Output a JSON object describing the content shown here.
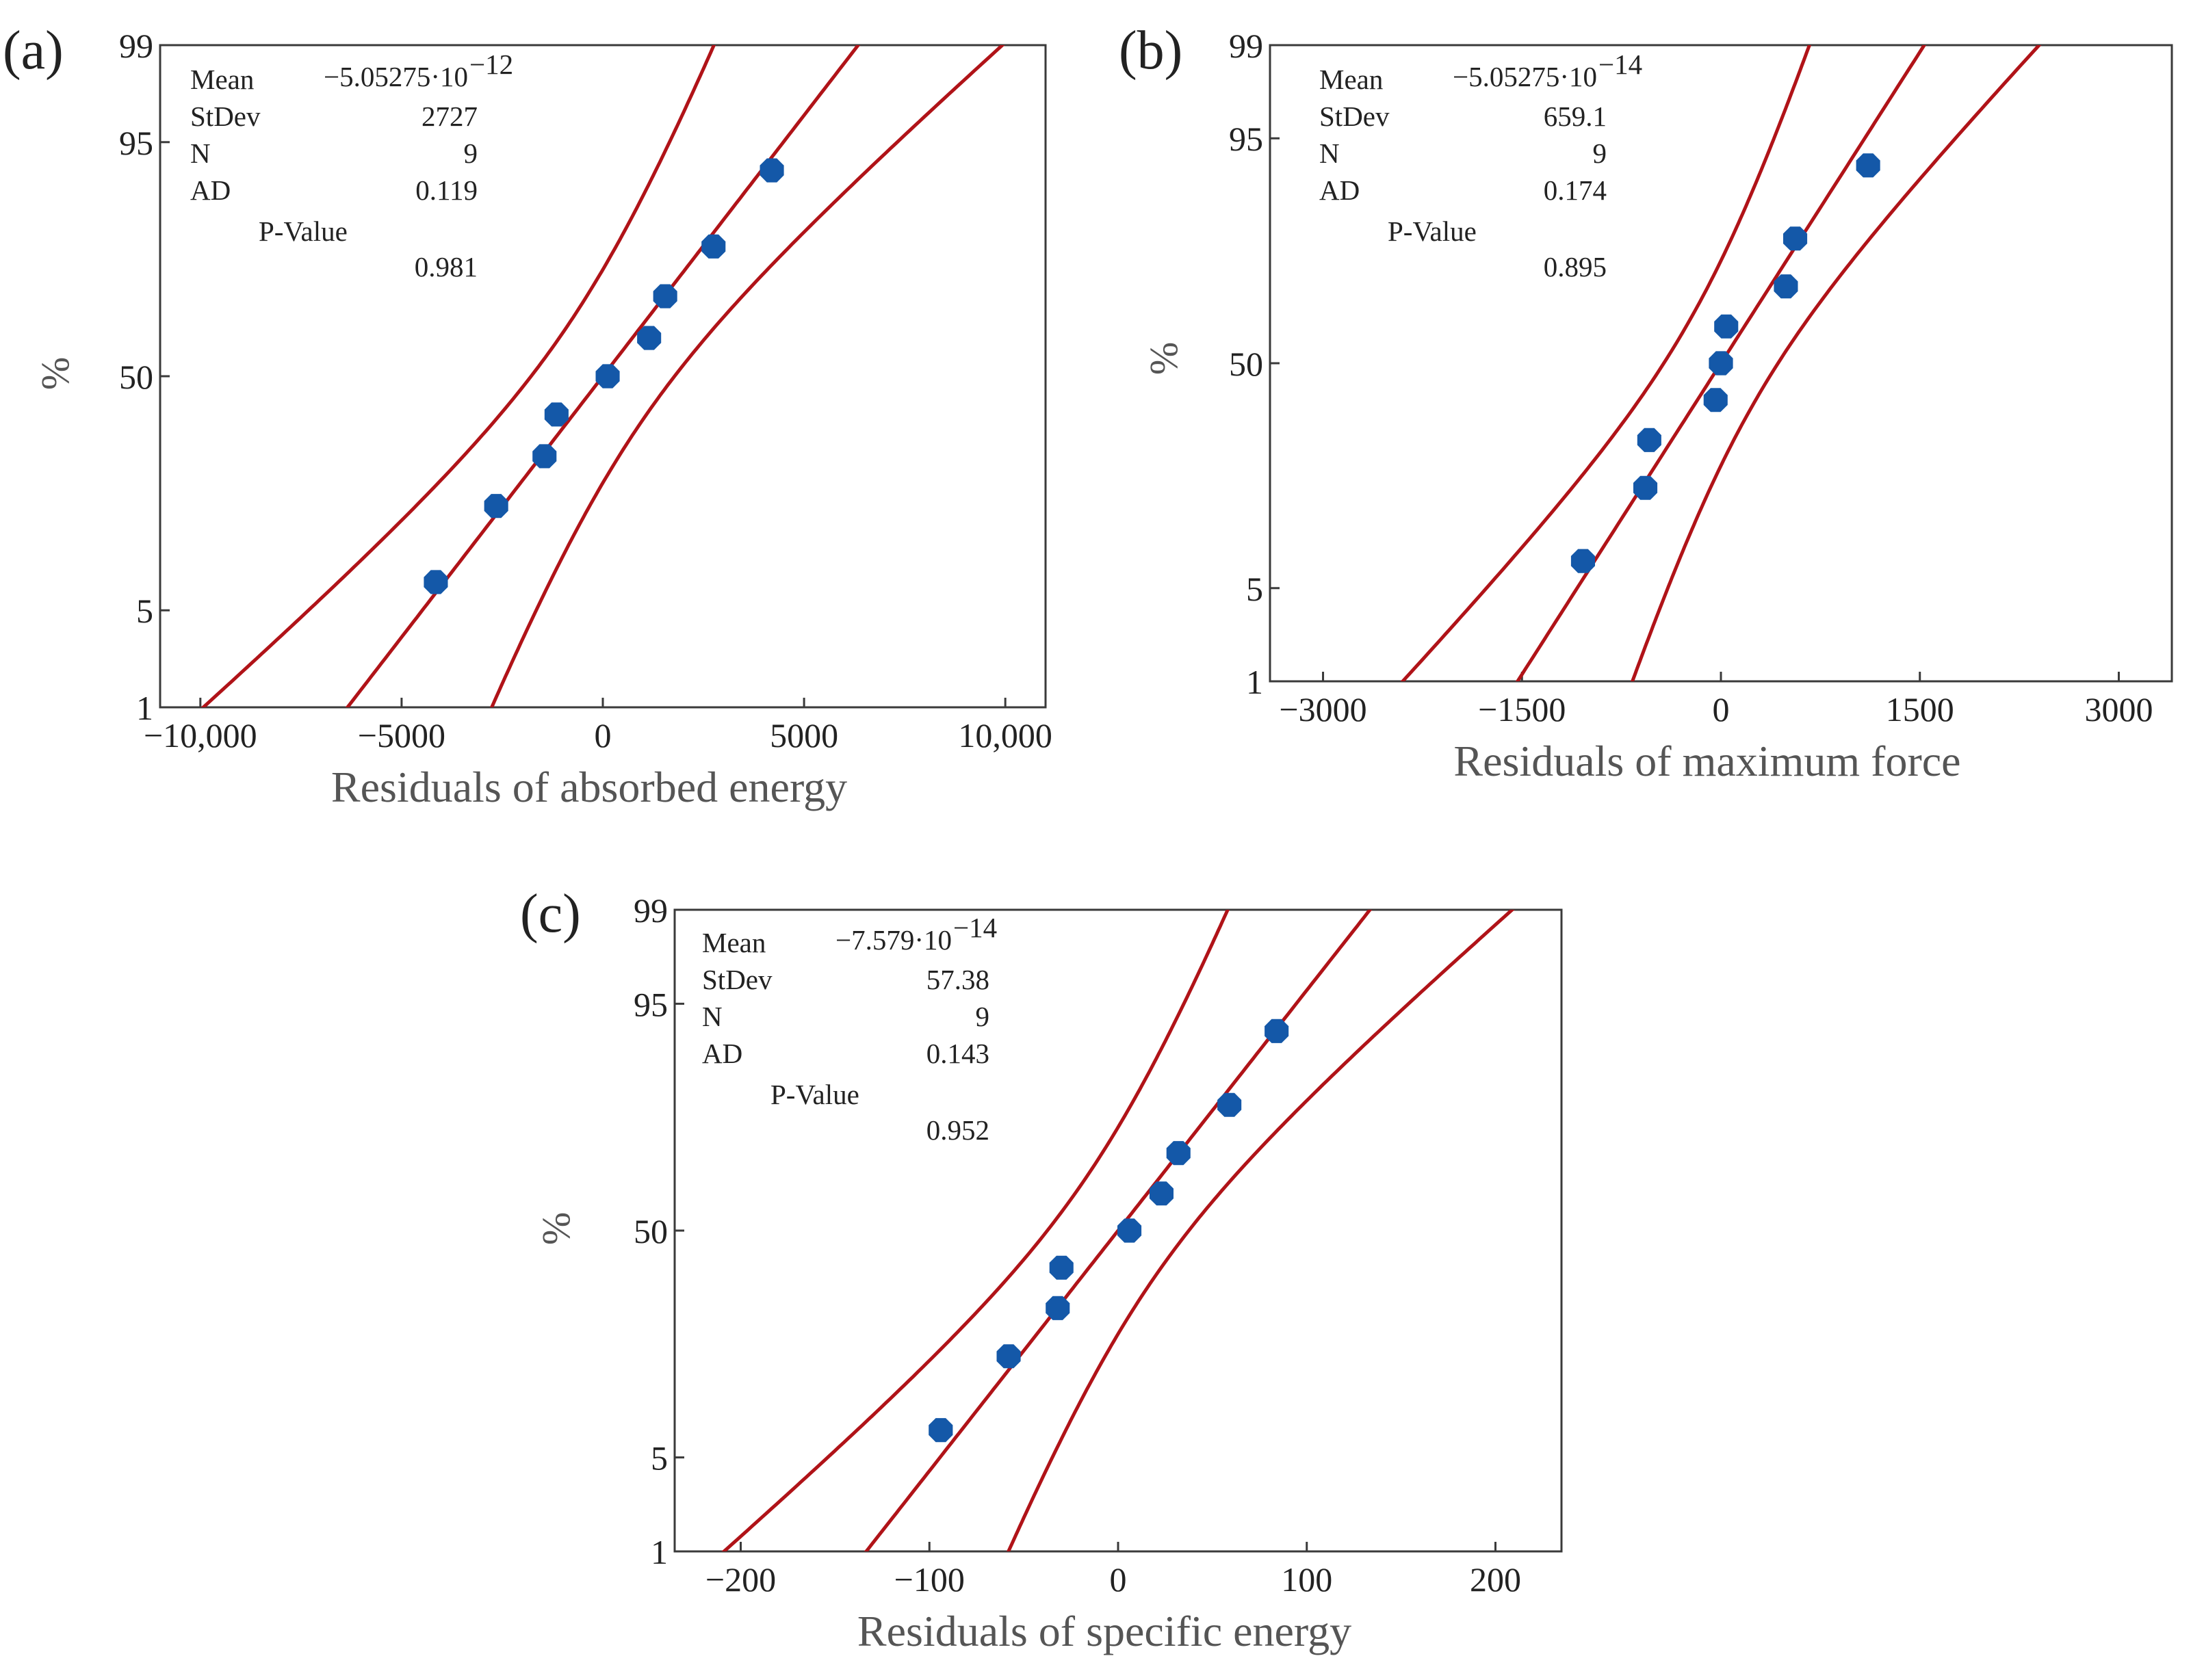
{
  "colors": {
    "line": "#b01318",
    "point": "#1458a8",
    "axis": "#3a3a3a"
  },
  "chart_data": [
    {
      "type": "scatter",
      "panel_label": "(a)",
      "title": "",
      "xlabel": "Residuals of absorbed energy",
      "ylabel": "%",
      "xlim": [
        -11000,
        11000
      ],
      "ylim_percent": [
        1,
        99
      ],
      "x_ticks": [
        -10000,
        -5000,
        0,
        5000,
        10000
      ],
      "x_tick_labels": [
        "−10,000",
        "−5000",
        "0",
        "5000",
        "10,000"
      ],
      "y_ticks": [
        1,
        5,
        50,
        95,
        99
      ],
      "y_tick_labels": [
        "1",
        "5",
        "50",
        "95",
        "99"
      ],
      "mean": 0,
      "stdev": 2727,
      "points": [
        {
          "x": -4150,
          "p": 7.4
        },
        {
          "x": -2650,
          "p": 18.1
        },
        {
          "x": -1450,
          "p": 28.7
        },
        {
          "x": -1150,
          "p": 39.4
        },
        {
          "x": 120,
          "p": 50
        },
        {
          "x": 1150,
          "p": 60.6
        },
        {
          "x": 1550,
          "p": 71.3
        },
        {
          "x": 2750,
          "p": 81.9
        },
        {
          "x": 4200,
          "p": 92.6
        }
      ],
      "stats": [
        {
          "label": "Mean",
          "value": "−5.05275·10",
          "exp": "−12"
        },
        {
          "label": "StDev",
          "value": "2727",
          "exp": ""
        },
        {
          "label": "N",
          "value": "9",
          "exp": ""
        },
        {
          "label": "AD",
          "value": "0.119",
          "exp": ""
        },
        {
          "label": "P-Value",
          "value": "0.981",
          "exp": ""
        }
      ]
    },
    {
      "type": "scatter",
      "panel_label": "(b)",
      "title": "",
      "xlabel": "Residuals of maximum force",
      "ylabel": "%",
      "xlim": [
        -3400,
        3400
      ],
      "ylim_percent": [
        1,
        99
      ],
      "x_ticks": [
        -3000,
        -1500,
        0,
        1500,
        3000
      ],
      "x_tick_labels": [
        "−3000",
        "−1500",
        "0",
        "1500",
        "3000"
      ],
      "y_ticks": [
        1,
        5,
        50,
        95,
        99
      ],
      "y_tick_labels": [
        "1",
        "5",
        "50",
        "95",
        "99"
      ],
      "mean": 0,
      "stdev": 659.1,
      "points": [
        {
          "x": -1040,
          "p": 7.4
        },
        {
          "x": -570,
          "p": 18.1
        },
        {
          "x": -540,
          "p": 28.7
        },
        {
          "x": -40,
          "p": 39.4
        },
        {
          "x": 0,
          "p": 50
        },
        {
          "x": 40,
          "p": 60.6
        },
        {
          "x": 490,
          "p": 71.3
        },
        {
          "x": 560,
          "p": 81.9
        },
        {
          "x": 1110,
          "p": 92.6
        }
      ],
      "stats": [
        {
          "label": "Mean",
          "value": "−5.05275·10",
          "exp": "−14"
        },
        {
          "label": "StDev",
          "value": "659.1",
          "exp": ""
        },
        {
          "label": "N",
          "value": "9",
          "exp": ""
        },
        {
          "label": "AD",
          "value": "0.174",
          "exp": ""
        },
        {
          "label": "P-Value",
          "value": "0.895",
          "exp": ""
        }
      ]
    },
    {
      "type": "scatter",
      "panel_label": "(c)",
      "title": "",
      "xlabel": "Residuals of specific energy",
      "ylabel": "%",
      "xlim": [
        -235,
        235
      ],
      "ylim_percent": [
        1,
        99
      ],
      "x_ticks": [
        -200,
        -100,
        0,
        100,
        200
      ],
      "x_tick_labels": [
        "−200",
        "−100",
        "0",
        "100",
        "200"
      ],
      "y_ticks": [
        1,
        5,
        50,
        95,
        99
      ],
      "y_tick_labels": [
        "1",
        "5",
        "50",
        "95",
        "99"
      ],
      "mean": 0,
      "stdev": 57.38,
      "points": [
        {
          "x": -94,
          "p": 7.4
        },
        {
          "x": -58,
          "p": 18.1
        },
        {
          "x": -32,
          "p": 28.7
        },
        {
          "x": -30,
          "p": 39.4
        },
        {
          "x": 6,
          "p": 50
        },
        {
          "x": 23,
          "p": 60.6
        },
        {
          "x": 32,
          "p": 71.3
        },
        {
          "x": 59,
          "p": 81.9
        },
        {
          "x": 84,
          "p": 92.6
        }
      ],
      "stats": [
        {
          "label": "Mean",
          "value": "−7.579·10",
          "exp": "−14"
        },
        {
          "label": "StDev",
          "value": "57.38",
          "exp": ""
        },
        {
          "label": "N",
          "value": "9",
          "exp": ""
        },
        {
          "label": "AD",
          "value": "0.143",
          "exp": ""
        },
        {
          "label": "P-Value",
          "value": "0.952",
          "exp": ""
        }
      ]
    }
  ]
}
